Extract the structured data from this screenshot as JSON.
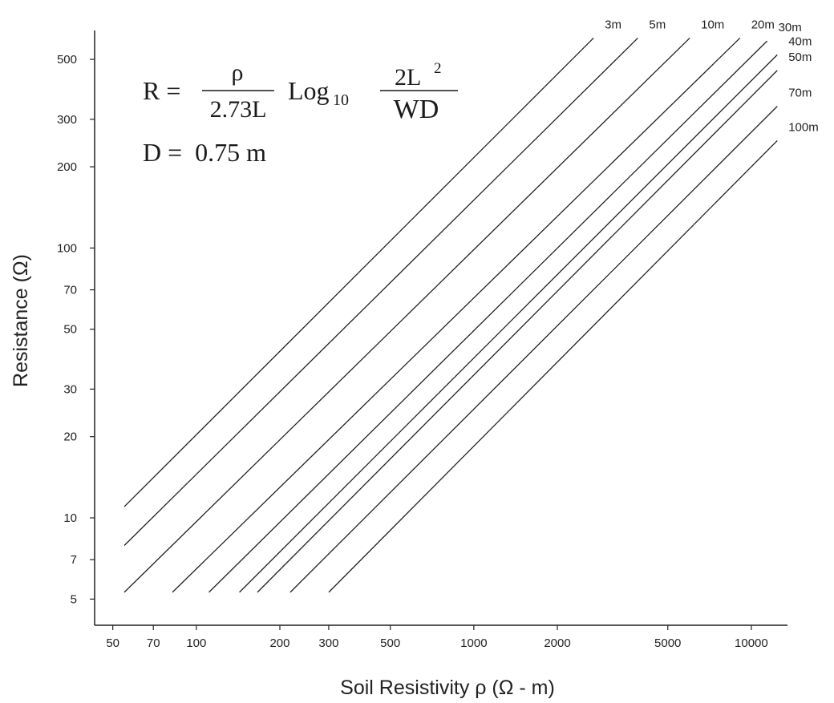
{
  "formula": {
    "lhs": "R =",
    "num1": "ρ",
    "den1": "2.73L",
    "log": "Log",
    "log_sub": "10",
    "num2": "2L",
    "num2_sup": "2",
    "den2": "WD",
    "param": "D =  0.75 m"
  },
  "chart_data": {
    "type": "line",
    "xlabel": "Soil Resistivity ρ (Ω - m)",
    "ylabel": "Resistance (Ω)",
    "x_scale": "log",
    "y_scale": "log",
    "xlim": [
      43,
      13500
    ],
    "ylim": [
      4.0,
      640
    ],
    "grid": false,
    "x_ticks": [
      50,
      70,
      100,
      200,
      300,
      500,
      1000,
      2000,
      5000,
      10000
    ],
    "x_tick_labels": [
      "50",
      "70",
      "100",
      "200",
      "300",
      "500",
      "1000",
      "2000",
      "5000",
      "10000"
    ],
    "y_ticks": [
      5,
      7,
      10,
      20,
      30,
      50,
      70,
      100,
      200,
      300,
      500
    ],
    "y_tick_labels": [
      "5",
      "7",
      "10",
      "20",
      "30",
      "50",
      "70",
      "100",
      "200",
      "300",
      "500"
    ],
    "series": [
      {
        "name": "3m",
        "points": [
          [
            55,
            11
          ],
          [
            2700,
            600
          ]
        ]
      },
      {
        "name": "5m",
        "points": [
          [
            55,
            7.9
          ],
          [
            3900,
            600
          ]
        ]
      },
      {
        "name": "10m",
        "points": [
          [
            55,
            5.3
          ],
          [
            6000,
            600
          ]
        ]
      },
      {
        "name": "20m",
        "points": [
          [
            82,
            5.3
          ],
          [
            9100,
            600
          ]
        ]
      },
      {
        "name": "30m",
        "points": [
          [
            111,
            5.3
          ],
          [
            11400,
            585
          ]
        ]
      },
      {
        "name": "40m",
        "points": [
          [
            143,
            5.3
          ],
          [
            12400,
            520
          ]
        ]
      },
      {
        "name": "50m",
        "points": [
          [
            166,
            5.3
          ],
          [
            12400,
            455
          ]
        ]
      },
      {
        "name": "70m",
        "points": [
          [
            218,
            5.3
          ],
          [
            12400,
            335
          ]
        ]
      },
      {
        "name": "100m",
        "points": [
          [
            300,
            5.3
          ],
          [
            12400,
            250
          ]
        ]
      }
    ]
  }
}
